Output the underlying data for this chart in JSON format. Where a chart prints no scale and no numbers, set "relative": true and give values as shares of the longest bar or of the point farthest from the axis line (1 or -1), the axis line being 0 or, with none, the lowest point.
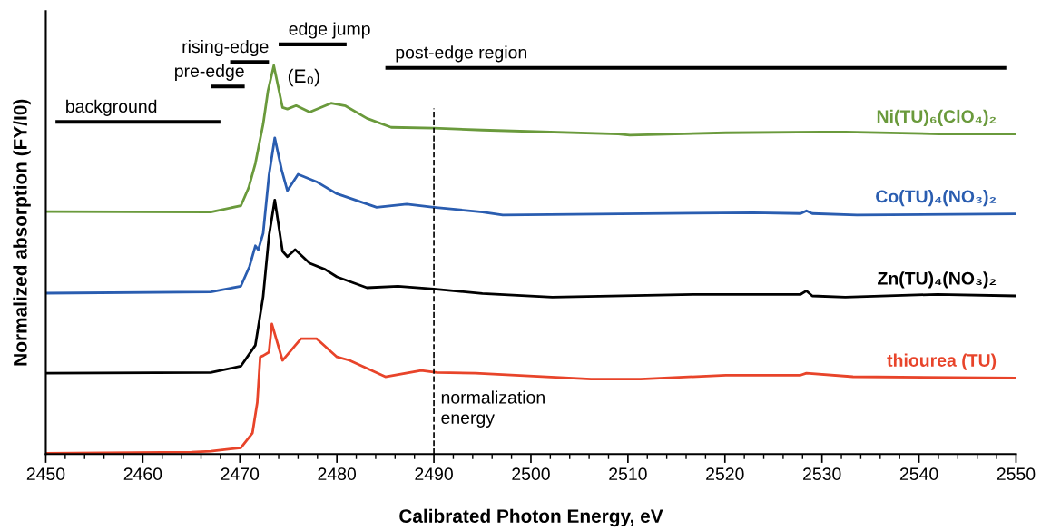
{
  "chart_data": {
    "type": "line",
    "relative": true,
    "xlabel": "Calibrated Photon Energy, eV",
    "ylabel": "Normalized absorption (FY/I0)",
    "xlim": [
      2450,
      2550
    ],
    "xticks": [
      2450,
      2460,
      2470,
      2480,
      2490,
      2500,
      2510,
      2520,
      2530,
      2540,
      2550
    ],
    "grid": false,
    "legend": false,
    "marker": "none",
    "line_style": "solid",
    "tick_labels": "x",
    "annotations": [
      "background",
      "pre-edge",
      "rising-edge",
      "edge jump",
      "post-edge region",
      "(E₀)"
    ],
    "ref_lines": [
      {
        "axis": "x",
        "value": 2490,
        "label": "normalization\nenergy",
        "color": "#000000",
        "line_style": "dashed"
      }
    ],
    "series": [
      {
        "name": "Ni(TU)₆(ClO₄)₂",
        "color": "#6a9a3c",
        "x": [
          2450,
          2467,
          2470.1,
          2470.9,
          2471.6,
          2472.4,
          2472.9,
          2473.5,
          2474.4,
          2474.9,
          2475.8,
          2477.2,
          2479.4,
          2480.9,
          2483.1,
          2485.6,
          2490,
          2495,
          2509,
          2510.2,
          2520.1,
          2530,
          2532.4,
          2542.1,
          2550
        ],
        "values": [
          0.624,
          0.623,
          0.639,
          0.685,
          0.748,
          0.849,
          0.935,
          1.0,
          0.892,
          0.888,
          0.897,
          0.88,
          0.903,
          0.896,
          0.864,
          0.841,
          0.839,
          0.834,
          0.824,
          0.821,
          0.827,
          0.829,
          0.829,
          0.824,
          0.824
        ]
      },
      {
        "name": "Co(TU)₄(NO₃)₂",
        "color": "#2a5db0",
        "x": [
          2450,
          2467,
          2470.1,
          2471,
          2471.6,
          2471.9,
          2472.4,
          2473,
          2473.6,
          2474.3,
          2474.9,
          2476,
          2477.9,
          2480,
          2484.1,
          2487.2,
          2490,
          2495,
          2497.1,
          2516.5,
          2522.9,
          2527.8,
          2528.4,
          2529,
          2533.6,
          2550
        ],
        "values": [
          0.414,
          0.417,
          0.432,
          0.483,
          0.536,
          0.526,
          0.568,
          0.717,
          0.814,
          0.732,
          0.678,
          0.72,
          0.701,
          0.67,
          0.635,
          0.643,
          0.635,
          0.623,
          0.615,
          0.62,
          0.621,
          0.619,
          0.626,
          0.619,
          0.615,
          0.618
        ]
      },
      {
        "name": "Zn(TU)₄(NO₃)₂",
        "color": "#000000",
        "x": [
          2450,
          2467,
          2470.1,
          2471.6,
          2472.4,
          2473,
          2473.6,
          2474.4,
          2474.9,
          2475.7,
          2477.2,
          2478.8,
          2480,
          2483.1,
          2486.3,
          2490,
          2495,
          2502.2,
          2517.3,
          2527.8,
          2528.4,
          2529,
          2532.4,
          2541.9,
          2550
        ],
        "values": [
          0.208,
          0.21,
          0.226,
          0.28,
          0.405,
          0.561,
          0.654,
          0.522,
          0.508,
          0.526,
          0.491,
          0.475,
          0.456,
          0.428,
          0.432,
          0.425,
          0.413,
          0.404,
          0.411,
          0.411,
          0.42,
          0.407,
          0.404,
          0.411,
          0.407
        ]
      },
      {
        "name": "thiourea (TU)",
        "color": "#e8442a",
        "x": [
          2450,
          2465,
          2467,
          2470.1,
          2471.3,
          2471.8,
          2472.1,
          2472.4,
          2473,
          2473.3,
          2474.4,
          2476.3,
          2477.9,
          2480,
          2481.3,
          2485,
          2488.7,
          2490.3,
          2494.3,
          2506.2,
          2511.3,
          2520.1,
          2527.8,
          2528.4,
          2533.2,
          2550
        ],
        "values": [
          0.002,
          0.005,
          0.007,
          0.016,
          0.054,
          0.133,
          0.25,
          0.253,
          0.262,
          0.335,
          0.241,
          0.297,
          0.297,
          0.25,
          0.241,
          0.199,
          0.215,
          0.21,
          0.208,
          0.193,
          0.193,
          0.203,
          0.203,
          0.208,
          0.199,
          0.196
        ]
      }
    ]
  }
}
